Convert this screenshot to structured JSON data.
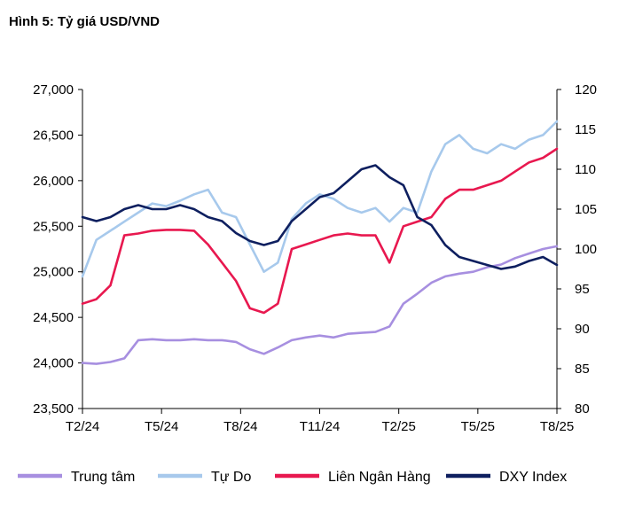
{
  "title": "Hình 5: Tỷ giá USD/VND",
  "chart_data": {
    "type": "line",
    "title": "Hình 5: Tỷ giá USD/VND",
    "x_tick_labels": [
      "T2/24",
      "T5/24",
      "T8/24",
      "T11/24",
      "T2/25",
      "T5/25",
      "T8/25"
    ],
    "y_left": {
      "ylim": [
        23500,
        27000
      ],
      "ticks": [
        "23,500",
        "24,000",
        "24,500",
        "25,000",
        "25,500",
        "26,000",
        "26,500",
        "27,000"
      ]
    },
    "y_right": {
      "ylim": [
        80,
        120
      ],
      "ticks": [
        "80",
        "85",
        "90",
        "95",
        "100",
        "105",
        "110",
        "115",
        "120"
      ]
    },
    "grid": false,
    "legend_position": "bottom",
    "series": [
      {
        "name": "Trung tâm",
        "axis": "left",
        "color": "#a78fe0",
        "values": [
          24000,
          23990,
          24010,
          24050,
          24250,
          24260,
          24250,
          24250,
          24260,
          24250,
          24250,
          24230,
          24150,
          24100,
          24170,
          24250,
          24280,
          24300,
          24280,
          24320,
          24330,
          24340,
          24400,
          24650,
          24760,
          24880,
          24950,
          24980,
          25000,
          25050,
          25080,
          25150,
          25200,
          25250,
          25280
        ]
      },
      {
        "name": "Tự Do",
        "axis": "left",
        "color": "#a7c9ec",
        "values": [
          24950,
          25350,
          25450,
          25550,
          25650,
          25750,
          25720,
          25780,
          25850,
          25900,
          25650,
          25600,
          25300,
          25000,
          25100,
          25580,
          25750,
          25850,
          25800,
          25700,
          25650,
          25700,
          25550,
          25700,
          25650,
          26100,
          26400,
          26500,
          26350,
          26300,
          26400,
          26350,
          26450,
          26500,
          26650
        ]
      },
      {
        "name": "Liên Ngân Hàng",
        "axis": "left",
        "color": "#e8184f",
        "values": [
          24650,
          24700,
          24850,
          25400,
          25420,
          25450,
          25460,
          25460,
          25450,
          25300,
          25100,
          24900,
          24600,
          24550,
          24650,
          25250,
          25300,
          25350,
          25400,
          25420,
          25400,
          25400,
          25100,
          25500,
          25550,
          25600,
          25800,
          25900,
          25900,
          25950,
          26000,
          26100,
          26200,
          26250,
          26350
        ]
      },
      {
        "name": "DXY Index",
        "axis": "right",
        "color": "#0e1f5f",
        "values": [
          104.0,
          103.5,
          104.0,
          105.0,
          105.5,
          105.0,
          105.0,
          105.5,
          105.0,
          104.0,
          103.5,
          102.0,
          101.0,
          100.5,
          101.0,
          103.5,
          105.0,
          106.5,
          107.0,
          108.5,
          110.0,
          110.5,
          109.0,
          108.0,
          104.0,
          103.0,
          100.5,
          99.0,
          98.5,
          98.0,
          97.5,
          97.8,
          98.5,
          99.0,
          98.0
        ]
      }
    ]
  }
}
